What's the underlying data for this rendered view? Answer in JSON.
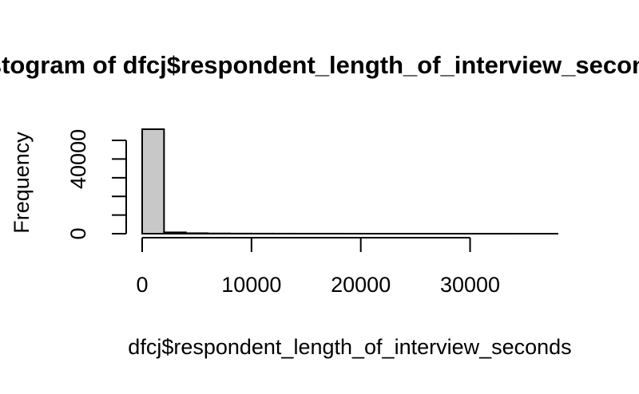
{
  "chart_data": {
    "type": "bar",
    "title": "Histogram of dfcj$respondent_length_of_interview_seconds",
    "xlabel": "dfcj$respondent_length_of_interview_seconds",
    "ylabel": "Frequency",
    "bin_width": 2000,
    "bins": [
      {
        "x0": 0,
        "x1": 2000,
        "count": 56000
      },
      {
        "x0": 2000,
        "x1": 4000,
        "count": 700
      },
      {
        "x0": 4000,
        "x1": 6000,
        "count": 250
      },
      {
        "x0": 6000,
        "x1": 8000,
        "count": 120
      },
      {
        "x0": 8000,
        "x1": 10000,
        "count": 60
      },
      {
        "x0": 10000,
        "x1": 12000,
        "count": 40
      },
      {
        "x0": 12000,
        "x1": 14000,
        "count": 30
      },
      {
        "x0": 14000,
        "x1": 16000,
        "count": 20
      },
      {
        "x0": 16000,
        "x1": 18000,
        "count": 15
      },
      {
        "x0": 18000,
        "x1": 20000,
        "count": 12
      },
      {
        "x0": 20000,
        "x1": 22000,
        "count": 10
      },
      {
        "x0": 22000,
        "x1": 24000,
        "count": 8
      },
      {
        "x0": 24000,
        "x1": 26000,
        "count": 6
      },
      {
        "x0": 26000,
        "x1": 28000,
        "count": 5
      },
      {
        "x0": 28000,
        "x1": 30000,
        "count": 4
      },
      {
        "x0": 30000,
        "x1": 32000,
        "count": 3
      },
      {
        "x0": 32000,
        "x1": 34000,
        "count": 3
      },
      {
        "x0": 34000,
        "x1": 36000,
        "count": 2
      },
      {
        "x0": 36000,
        "x1": 38000,
        "count": 2
      }
    ],
    "x_ticks": [
      0,
      10000,
      20000,
      30000
    ],
    "x_tick_labels": [
      "0",
      "10000",
      "20000",
      "30000"
    ],
    "y_ticks": [
      0,
      10000,
      20000,
      30000,
      40000,
      50000
    ],
    "y_tick_labels": [
      "0",
      "",
      "",
      "",
      "40000",
      ""
    ],
    "xlim": [
      0,
      38000
    ],
    "ylim": [
      0,
      56000
    ],
    "bar_color": "#c8c8c8",
    "grid": false,
    "legend": "none"
  }
}
